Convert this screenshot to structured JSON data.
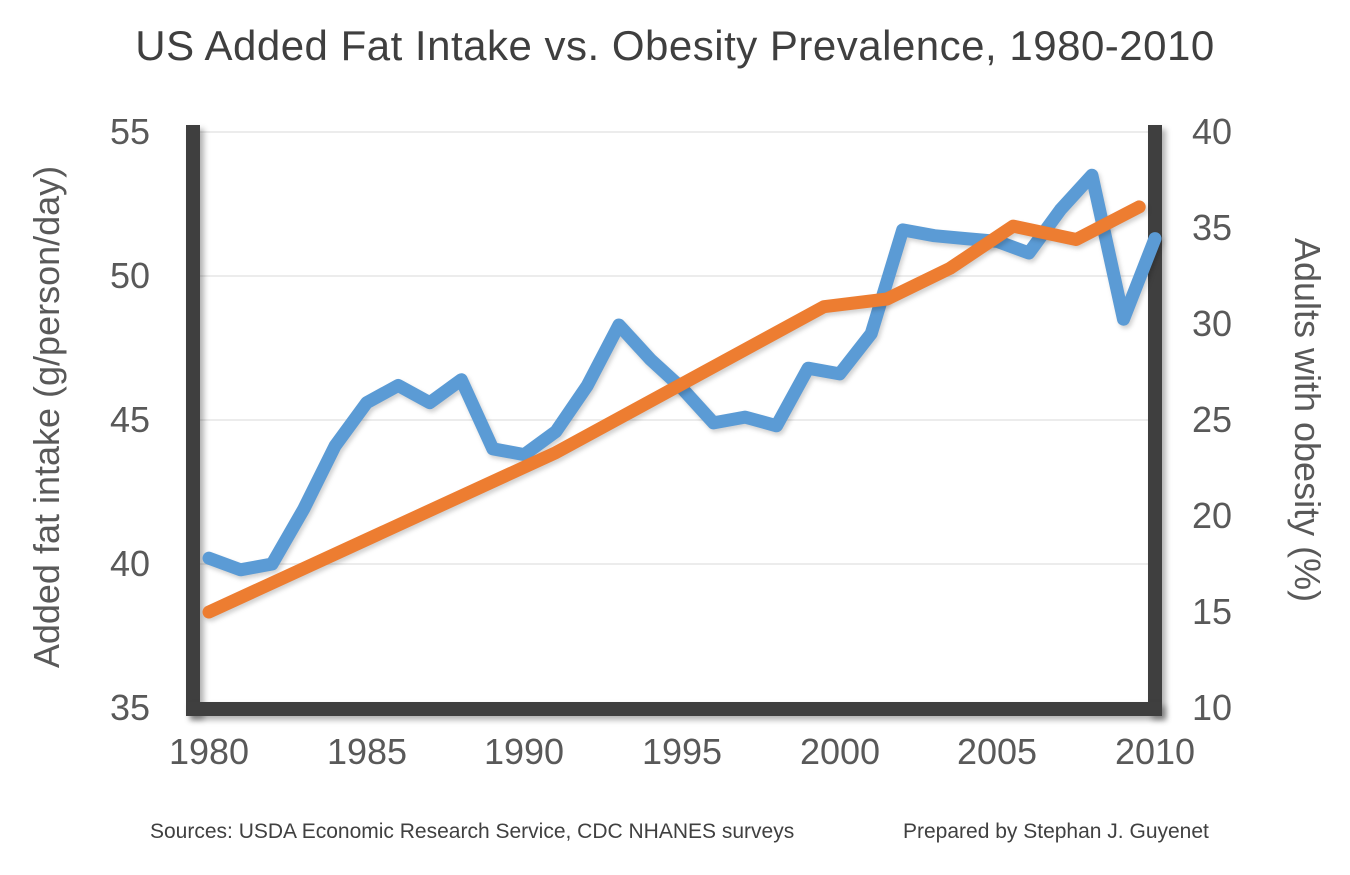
{
  "title": "US Added Fat Intake vs. Obesity Prevalence, 1980-2010",
  "footer": {
    "sources": "Sources: USDA Economic Research Service, CDC NHANES surveys",
    "credit": "Prepared by Stephan J. Guyenet"
  },
  "chart_data": {
    "type": "line",
    "title": "US Added Fat Intake vs. Obesity Prevalence, 1980-2010",
    "grid": "horizontal",
    "legend": "none",
    "x_axis": {
      "range": [
        1980,
        2010
      ],
      "ticks": [
        "1980",
        "1985",
        "1990",
        "1995",
        "2000",
        "2005",
        "2010"
      ]
    },
    "left_axis": {
      "label": "Added fat intake (g/person/day)",
      "range": [
        35,
        55
      ],
      "ticks": [
        "55",
        "50",
        "45",
        "40",
        "35"
      ],
      "gridlines": [
        40,
        45,
        50,
        55
      ]
    },
    "right_axis": {
      "label": "Adults with obesity (%)",
      "range": [
        10,
        40
      ],
      "ticks": [
        "40",
        "35",
        "30",
        "25",
        "20",
        "15",
        "10"
      ]
    },
    "series": [
      {
        "name": "Added fat intake (g/person/day)",
        "axis": "left",
        "color": "#5B9BD5",
        "x": [
          1980,
          1981,
          1982,
          1983,
          1984,
          1985,
          1986,
          1987,
          1988,
          1989,
          1990,
          1991,
          1992,
          1993,
          1994,
          1995,
          1996,
          1997,
          1998,
          1999,
          2000,
          2001,
          2002,
          2003,
          2004,
          2005,
          2006,
          2007,
          2008,
          2009,
          2010
        ],
        "values": [
          40.2,
          39.8,
          40.0,
          41.9,
          44.1,
          45.6,
          46.2,
          45.6,
          46.4,
          44.0,
          43.8,
          44.6,
          46.2,
          48.3,
          47.1,
          46.1,
          44.9,
          45.1,
          44.8,
          46.8,
          46.6,
          48.0,
          51.6,
          51.4,
          51.3,
          51.2,
          50.8,
          52.3,
          53.5,
          48.5,
          51.3
        ]
      },
      {
        "name": "Adults with obesity (%)",
        "axis": "right",
        "color": "#ED7D31",
        "x": [
          1980,
          1991,
          1999.5,
          2001.5,
          2003.5,
          2005.5,
          2007.5,
          2009.5
        ],
        "values": [
          15.0,
          23.3,
          30.9,
          31.3,
          32.9,
          35.1,
          34.4,
          36.1
        ]
      }
    ],
    "colors": {
      "axis_bar": "#3f3f3f",
      "gridline": "#ececec",
      "tick_text": "#595959",
      "title_text": "#3f3f3f"
    }
  }
}
